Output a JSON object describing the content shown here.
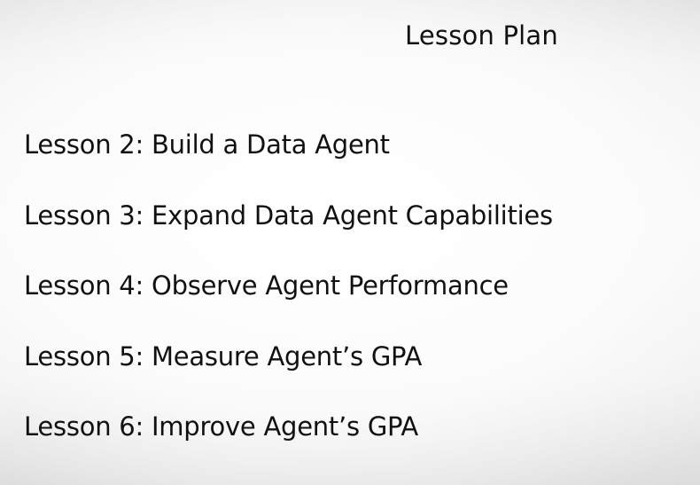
{
  "slide": {
    "title": "Lesson Plan",
    "lessons": [
      "Lesson 2: Build a Data Agent",
      "Lesson 3: Expand Data Agent Capabilities",
      "Lesson 4: Observe Agent Performance",
      "Lesson 5: Measure Agent’s GPA",
      "Lesson 6: Improve Agent’s GPA"
    ]
  }
}
